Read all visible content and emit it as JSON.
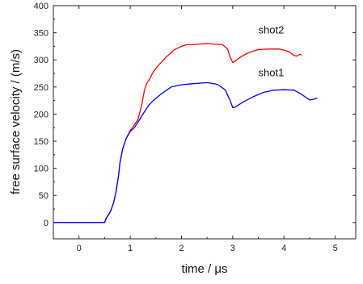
{
  "chart_data": {
    "type": "line",
    "xlabel": "time / μs",
    "ylabel": "free surface velocity / (m/s)",
    "xlim": [
      -0.5,
      5.4
    ],
    "ylim": [
      -30,
      400
    ],
    "x_ticks": [
      "0",
      "1",
      "2",
      "3",
      "4",
      "5"
    ],
    "y_ticks": [
      "0",
      "50",
      "100",
      "150",
      "200",
      "250",
      "300",
      "350",
      "400"
    ],
    "grid": false,
    "legend": "none",
    "series": [
      {
        "name": "shot2",
        "color": "#ff0000",
        "x": [
          -0.5,
          0.5,
          0.53,
          0.58,
          0.62,
          0.67,
          0.72,
          0.77,
          0.8,
          0.85,
          0.92,
          1.0,
          1.08,
          1.15,
          1.22,
          1.28,
          1.33,
          1.38,
          1.45,
          1.55,
          1.7,
          1.85,
          2.0,
          2.1,
          2.2,
          2.5,
          2.8,
          2.9,
          2.95,
          3.0,
          3.05,
          3.15,
          3.3,
          3.5,
          3.7,
          3.9,
          4.0,
          4.1,
          4.2,
          4.25,
          4.3,
          4.35
        ],
        "y": [
          0,
          0,
          8,
          15,
          22,
          35,
          55,
          85,
          110,
          135,
          155,
          170,
          180,
          190,
          215,
          245,
          258,
          265,
          278,
          290,
          305,
          318,
          325,
          328,
          328,
          330,
          328,
          320,
          305,
          295,
          298,
          305,
          313,
          319,
          320,
          320,
          318,
          315,
          308,
          307,
          310,
          309
        ]
      },
      {
        "name": "shot1",
        "color": "#0000ff",
        "x": [
          -0.5,
          0.5,
          0.53,
          0.58,
          0.62,
          0.67,
          0.72,
          0.77,
          0.8,
          0.85,
          0.92,
          1.0,
          1.08,
          1.15,
          1.25,
          1.35,
          1.45,
          1.6,
          1.8,
          2.0,
          2.2,
          2.5,
          2.7,
          2.85,
          2.95,
          3.0,
          3.05,
          3.2,
          3.4,
          3.6,
          3.8,
          4.0,
          4.2,
          4.35,
          4.5,
          4.6,
          4.65
        ],
        "y": [
          0,
          0,
          8,
          15,
          22,
          35,
          55,
          85,
          110,
          135,
          155,
          168,
          175,
          185,
          200,
          215,
          225,
          237,
          250,
          254,
          256,
          258,
          255,
          245,
          225,
          212,
          213,
          222,
          232,
          240,
          244,
          245,
          244,
          236,
          226,
          228,
          230
        ]
      }
    ],
    "annotations": [
      {
        "text": "shot2",
        "x": 3.75,
        "y": 349
      },
      {
        "text": "shot1",
        "x": 3.75,
        "y": 270
      }
    ]
  }
}
